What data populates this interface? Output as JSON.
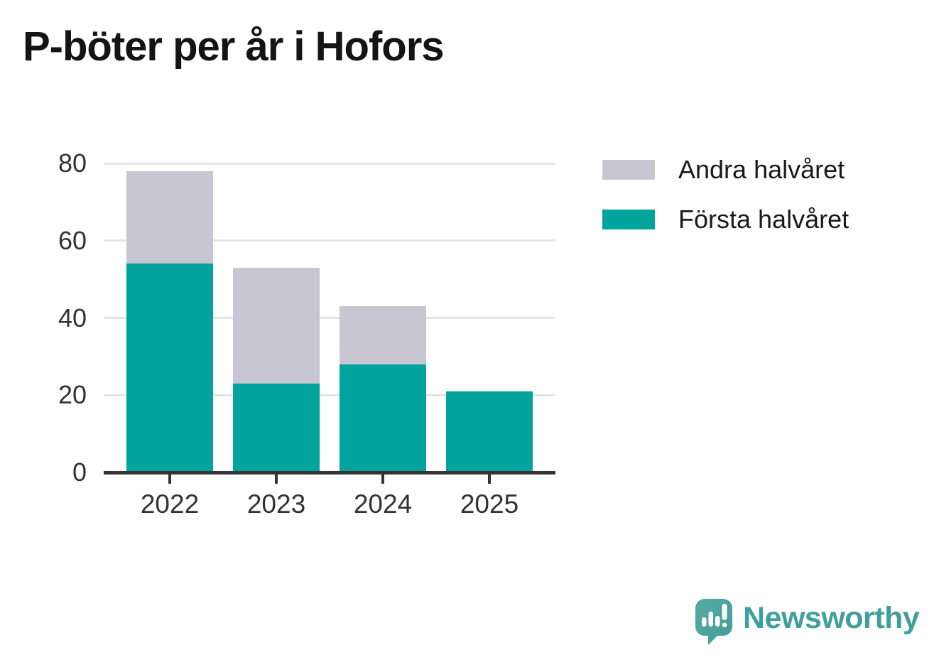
{
  "title": "P-böter per år i Hofors",
  "chart_data": {
    "type": "bar",
    "stacked": true,
    "title": "P-böter per år i Hofors",
    "categories": [
      "2022",
      "2023",
      "2024",
      "2025"
    ],
    "series": [
      {
        "name": "Första halvåret",
        "color": "#00a49c",
        "values": [
          54,
          23,
          28,
          21
        ]
      },
      {
        "name": "Andra halvåret",
        "color": "#c8c6d2",
        "values": [
          24,
          30,
          15,
          0
        ]
      }
    ],
    "totals": [
      78,
      53,
      43,
      21
    ],
    "xlabel": "",
    "ylabel": "",
    "ylim": [
      0,
      80
    ],
    "yticks": [
      0,
      20,
      40,
      60,
      80
    ],
    "grid": "horizontal",
    "legend_position": "outside-upper-right",
    "legend_order": [
      "Andra halvåret",
      "Första halvåret"
    ]
  },
  "legend": {
    "items": [
      {
        "label": "Andra halvåret",
        "color": "#c8c6d2"
      },
      {
        "label": "Första halvåret",
        "color": "#00a49c"
      }
    ]
  },
  "branding": {
    "wordmark": "Newsworthy",
    "icon": "newsworthy-speech-bubble-barchart-icon",
    "wordmark_color": "#3f9f9c",
    "icon_color": "#4ba29c"
  },
  "colors": {
    "background": "#ffffff",
    "bar_first_half": "#00a49c",
    "bar_second_half": "#c8c6d2",
    "axis": "#333333",
    "gridline": "#e4e4e4",
    "title_text": "#141414",
    "tick_text": "#333333",
    "legend_text": "#1a1a1a"
  }
}
